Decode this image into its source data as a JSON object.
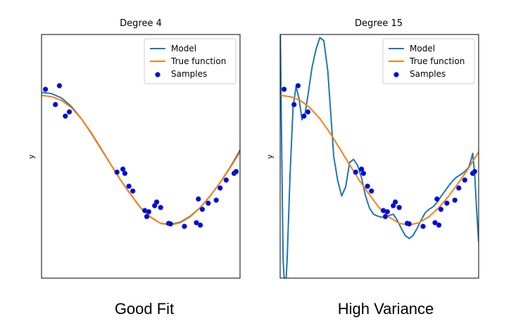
{
  "colors": {
    "model": "#1f77b4",
    "true_function": "#ff7f0e",
    "sample_fill": "#0000ff",
    "sample_edge": "#1f3f8f",
    "axes": "#000000"
  },
  "captions": {
    "left": "Good Fit",
    "right": "High Variance"
  },
  "chart_data": [
    {
      "type": "line",
      "title": "Degree 4",
      "xlabel": "",
      "ylabel": "y",
      "xlim": [
        0,
        1
      ],
      "ylim": [
        -2,
        2
      ],
      "ticks": "none",
      "legend": {
        "placement": "top-right",
        "entries": [
          {
            "label": "Model",
            "kind": "line",
            "color": "#1f77b4"
          },
          {
            "label": "True function",
            "kind": "line",
            "color": "#ff7f0e"
          },
          {
            "label": "Samples",
            "kind": "marker",
            "color": "#0000ff"
          }
        ]
      },
      "series": [
        {
          "name": "Model",
          "kind": "line",
          "x": [
            0.0,
            0.05,
            0.1,
            0.15,
            0.2,
            0.25,
            0.3,
            0.35,
            0.4,
            0.45,
            0.5,
            0.55,
            0.6,
            0.65,
            0.7,
            0.75,
            0.8,
            0.85,
            0.9,
            0.95,
            1.0
          ],
          "y": [
            1.05,
            1.03,
            0.96,
            0.82,
            0.62,
            0.38,
            0.12,
            -0.14,
            -0.4,
            -0.63,
            -0.85,
            -1.0,
            -1.1,
            -1.12,
            -1.08,
            -0.98,
            -0.84,
            -0.65,
            -0.43,
            -0.18,
            0.1
          ]
        },
        {
          "name": "True function",
          "kind": "line",
          "x": [
            0.0,
            0.05,
            0.1,
            0.15,
            0.2,
            0.25,
            0.3,
            0.35,
            0.4,
            0.45,
            0.5,
            0.55,
            0.6,
            0.65,
            0.7,
            0.75,
            0.8,
            0.85,
            0.9,
            0.95,
            1.0
          ],
          "y": [
            1.0,
            0.98,
            0.92,
            0.8,
            0.62,
            0.39,
            0.13,
            -0.14,
            -0.4,
            -0.63,
            -0.85,
            -1.0,
            -1.1,
            -1.13,
            -1.09,
            -0.99,
            -0.84,
            -0.65,
            -0.43,
            -0.19,
            0.07
          ]
        },
        {
          "name": "Samples",
          "kind": "scatter",
          "x": [
            0.02,
            0.07,
            0.09,
            0.12,
            0.14,
            0.38,
            0.41,
            0.42,
            0.44,
            0.46,
            0.52,
            0.53,
            0.54,
            0.57,
            0.58,
            0.6,
            0.64,
            0.65,
            0.72,
            0.78,
            0.79,
            0.8,
            0.81,
            0.84,
            0.88,
            0.9,
            0.93,
            0.97,
            0.98
          ],
          "y": [
            1.1,
            0.85,
            1.16,
            0.66,
            0.73,
            -0.26,
            -0.21,
            -0.28,
            -0.49,
            -0.57,
            -0.89,
            -0.99,
            -0.91,
            -0.81,
            -0.75,
            -0.84,
            -1.1,
            -1.11,
            -1.15,
            -1.09,
            -0.7,
            -1.13,
            -0.87,
            -0.77,
            -0.72,
            -0.52,
            -0.39,
            -0.28,
            -0.25
          ]
        }
      ]
    },
    {
      "type": "line",
      "title": "Degree 15",
      "xlabel": "",
      "ylabel": "y",
      "xlim": [
        0,
        1
      ],
      "ylim": [
        -2,
        2
      ],
      "ticks": "none",
      "legend": {
        "placement": "top-right",
        "entries": [
          {
            "label": "Model",
            "kind": "line",
            "color": "#1f77b4"
          },
          {
            "label": "True function",
            "kind": "line",
            "color": "#ff7f0e"
          },
          {
            "label": "Samples",
            "kind": "marker",
            "color": "#0000ff"
          }
        ]
      },
      "series": [
        {
          "name": "Model",
          "kind": "line",
          "x": [
            0.0,
            0.008,
            0.015,
            0.025,
            0.035,
            0.05,
            0.065,
            0.08,
            0.095,
            0.11,
            0.125,
            0.14,
            0.16,
            0.18,
            0.2,
            0.22,
            0.24,
            0.255,
            0.27,
            0.29,
            0.31,
            0.33,
            0.35,
            0.37,
            0.39,
            0.41,
            0.43,
            0.45,
            0.47,
            0.49,
            0.51,
            0.53,
            0.55,
            0.57,
            0.59,
            0.61,
            0.63,
            0.65,
            0.67,
            0.69,
            0.71,
            0.73,
            0.75,
            0.77,
            0.79,
            0.81,
            0.83,
            0.85,
            0.87,
            0.89,
            0.91,
            0.93,
            0.95,
            0.96,
            0.97,
            0.98,
            0.99,
            1.0
          ],
          "y": [
            2.3,
            0.0,
            -1.7,
            -2.3,
            -1.7,
            -0.3,
            0.8,
            1.15,
            0.95,
            0.6,
            0.7,
            1.0,
            1.45,
            1.75,
            1.95,
            1.9,
            1.4,
            0.7,
            0.0,
            -0.4,
            -0.65,
            -0.5,
            -0.1,
            -0.05,
            -0.15,
            -0.35,
            -0.65,
            -0.85,
            -0.95,
            -0.98,
            -1.0,
            -1.0,
            -0.97,
            -0.95,
            -1.05,
            -1.18,
            -1.3,
            -1.35,
            -1.3,
            -1.18,
            -1.05,
            -0.93,
            -0.87,
            -0.83,
            -0.76,
            -0.66,
            -0.57,
            -0.48,
            -0.4,
            -0.34,
            -0.3,
            -0.25,
            -0.18,
            -0.08,
            0.05,
            -0.3,
            -0.9,
            -1.4
          ]
        },
        {
          "name": "True function",
          "kind": "line",
          "x": [
            0.0,
            0.05,
            0.1,
            0.15,
            0.2,
            0.25,
            0.3,
            0.35,
            0.4,
            0.45,
            0.5,
            0.55,
            0.6,
            0.65,
            0.7,
            0.75,
            0.8,
            0.85,
            0.9,
            0.95,
            1.0
          ],
          "y": [
            1.0,
            0.98,
            0.92,
            0.8,
            0.62,
            0.39,
            0.13,
            -0.14,
            -0.4,
            -0.63,
            -0.85,
            -1.0,
            -1.1,
            -1.13,
            -1.09,
            -0.99,
            -0.84,
            -0.65,
            -0.43,
            -0.19,
            0.07
          ]
        },
        {
          "name": "Samples",
          "kind": "scatter",
          "x": [
            0.02,
            0.07,
            0.09,
            0.12,
            0.14,
            0.38,
            0.41,
            0.42,
            0.44,
            0.46,
            0.52,
            0.53,
            0.54,
            0.57,
            0.58,
            0.6,
            0.64,
            0.65,
            0.72,
            0.78,
            0.79,
            0.8,
            0.81,
            0.84,
            0.88,
            0.9,
            0.93,
            0.97,
            0.98
          ],
          "y": [
            1.1,
            0.85,
            1.16,
            0.66,
            0.73,
            -0.26,
            -0.21,
            -0.28,
            -0.49,
            -0.57,
            -0.89,
            -0.99,
            -0.91,
            -0.81,
            -0.75,
            -0.84,
            -1.1,
            -1.11,
            -1.15,
            -1.09,
            -0.7,
            -1.13,
            -0.87,
            -0.77,
            -0.72,
            -0.52,
            -0.39,
            -0.28,
            -0.25
          ]
        }
      ]
    }
  ]
}
